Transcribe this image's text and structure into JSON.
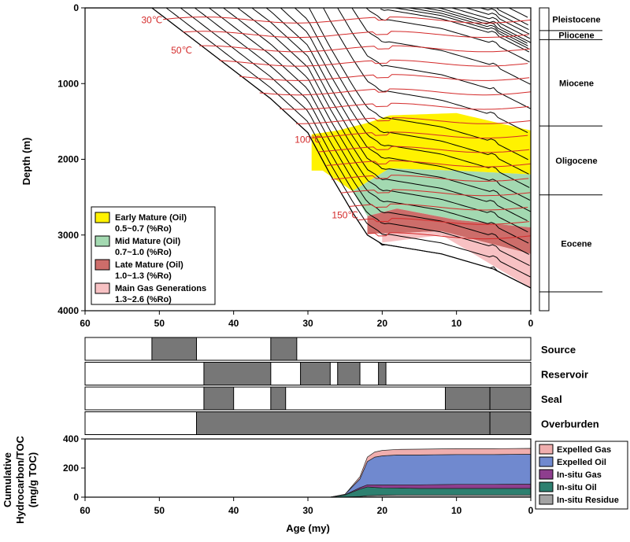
{
  "chart_data": [
    {
      "type": "area",
      "panel": "burial-history",
      "ylabel": "Depth (m)",
      "xlim": [
        60,
        0
      ],
      "ylim": [
        4000,
        0
      ],
      "x_ticks": [
        60,
        50,
        40,
        30,
        20,
        10,
        0
      ],
      "y_ticks": [
        0,
        1000,
        2000,
        3000,
        4000
      ],
      "isotherm_labels": [
        {
          "text": "30℃",
          "age": 51,
          "depth": 200
        },
        {
          "text": "50℃",
          "age": 47,
          "depth": 600
        },
        {
          "text": "100℃",
          "age": 30,
          "depth": 1780
        },
        {
          "text": "150℃",
          "age": 25,
          "depth": 2780
        }
      ],
      "legend": [
        {
          "label": "Early Mature (Oil)",
          "sub": "0.5~0.7 (%Ro)",
          "color": "#fff200"
        },
        {
          "label": "Mid Mature (Oil)",
          "sub": "0.7~1.0 (%Ro)",
          "color": "#a3d9b1"
        },
        {
          "label": "Late Mature (Oil)",
          "sub": "1.0~1.3 (%Ro)",
          "color": "#cd6d6a"
        },
        {
          "label": "Main Gas Generations",
          "sub": "1.3~2.6 (%Ro)",
          "color": "#f7c1c3"
        }
      ],
      "stratigraphy": [
        {
          "name": "Pleistocene",
          "top": 0,
          "base": 300
        },
        {
          "name": "Pliocene",
          "top": 300,
          "base": 420
        },
        {
          "name": "Miocene",
          "top": 420,
          "base": 1560
        },
        {
          "name": "Oligocene",
          "top": 1560,
          "base": 2470
        },
        {
          "name": "Eocene",
          "top": 2470,
          "base": 3750
        }
      ],
      "maturity_zones": {
        "early_mature_top": [
          [
            29.5,
            1670
          ],
          [
            26,
            1620
          ],
          [
            22,
            1520
          ],
          [
            19,
            1420
          ],
          [
            10,
            1390
          ],
          [
            0,
            1620
          ]
        ],
        "early_mature_base": [
          [
            28,
            2150
          ],
          [
            24,
            2420
          ],
          [
            22,
            2300
          ],
          [
            19,
            2120
          ],
          [
            10,
            2150
          ],
          [
            0,
            2200
          ]
        ],
        "mid_mature_base": [
          [
            24,
            2420
          ],
          [
            22,
            2750
          ],
          [
            18,
            2650
          ],
          [
            10,
            2800
          ],
          [
            0,
            2900
          ]
        ],
        "late_mature_base": [
          [
            20,
            2980
          ],
          [
            12,
            2950
          ],
          [
            0,
            3250
          ]
        ],
        "gas_base": [
          [
            20,
            3100
          ],
          [
            12,
            3000
          ],
          [
            0,
            3700
          ]
        ]
      }
    },
    {
      "type": "table",
      "panel": "petroleum-system-events",
      "rows": [
        {
          "name": "Source",
          "intervals": [
            [
              51,
              45
            ],
            [
              35,
              31.5
            ]
          ]
        },
        {
          "name": "Reservoir",
          "intervals": [
            [
              44,
              35
            ],
            [
              31,
              27
            ],
            [
              26,
              23
            ],
            [
              20.5,
              19.5
            ]
          ]
        },
        {
          "name": "Seal",
          "intervals": [
            [
              44,
              40
            ],
            [
              35,
              33
            ],
            [
              11.5,
              5.5
            ],
            [
              5.5,
              0
            ]
          ]
        },
        {
          "name": "Overburden",
          "intervals": [
            [
              45,
              5.5
            ],
            [
              5.5,
              0
            ]
          ]
        }
      ]
    },
    {
      "type": "area",
      "panel": "cumulative-generation",
      "xlabel": "Age (my)",
      "ylabel": "Cumulative Hydrocarbon/TOC (mg/g TOC)",
      "xlim": [
        60,
        0
      ],
      "ylim": [
        0,
        400
      ],
      "x_ticks": [
        60,
        50,
        40,
        30,
        20,
        10,
        0
      ],
      "y_ticks": [
        0,
        200,
        400
      ],
      "x": [
        60,
        27,
        25,
        23,
        22,
        21,
        20,
        18,
        15,
        10,
        5,
        0
      ],
      "series": [
        {
          "name": "In-situ Residue",
          "color": "#a3a3a3",
          "values": [
            0,
            0,
            0,
            5,
            10,
            12,
            14,
            15,
            15,
            15,
            15,
            15
          ]
        },
        {
          "name": "In-situ Oil",
          "color": "#2d8070",
          "values": [
            0,
            0,
            15,
            50,
            60,
            55,
            50,
            48,
            45,
            45,
            45,
            45
          ]
        },
        {
          "name": "In-situ Gas",
          "color": "#8e3e8e",
          "values": [
            0,
            0,
            2,
            10,
            15,
            18,
            20,
            22,
            25,
            28,
            28,
            30
          ]
        },
        {
          "name": "Expelled Oil",
          "color": "#7089cf",
          "values": [
            0,
            0,
            3,
            60,
            160,
            190,
            200,
            205,
            205,
            205,
            205,
            205
          ]
        },
        {
          "name": "Expelled Gas",
          "color": "#f0aeae",
          "values": [
            0,
            0,
            0,
            15,
            30,
            35,
            37,
            38,
            40,
            40,
            40,
            40
          ]
        }
      ]
    }
  ]
}
